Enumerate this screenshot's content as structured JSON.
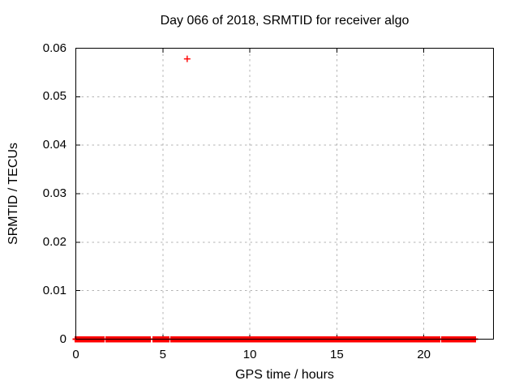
{
  "chart_data": {
    "type": "scatter",
    "title": "Day 066 of 2018, SRMTID for receiver algo",
    "xlabel": "GPS time / hours",
    "ylabel": "SRMTID / TECUs",
    "xlim": [
      0,
      24
    ],
    "ylim": [
      0,
      0.06
    ],
    "xticks": [
      0,
      5,
      10,
      15,
      20
    ],
    "xtick_labels": [
      "0",
      "5",
      "10",
      "15",
      "20"
    ],
    "yticks": [
      0,
      0.01,
      0.02,
      0.03,
      0.04,
      0.05,
      0.06
    ],
    "ytick_labels": [
      "0",
      "0.01",
      "0.02",
      "0.03",
      "0.04",
      "0.05",
      "0.06"
    ],
    "grid": true,
    "legend": "none",
    "marker_style": "plus",
    "colors": {
      "series": "#ff0000",
      "grid": "#b3b3b3",
      "axis": "#000000",
      "text": "#000000",
      "background": "#ffffff"
    },
    "outlier_point": {
      "x": 6.4,
      "y": 0.0578
    },
    "baseline_band": {
      "y": 0,
      "segments_hours": [
        [
          0.0,
          1.3
        ],
        [
          1.4,
          1.58
        ],
        [
          1.77,
          4.24
        ],
        [
          4.47,
          5.31
        ],
        [
          5.5,
          11.56
        ],
        [
          11.7,
          12.82
        ],
        [
          12.96,
          14.03
        ],
        [
          14.17,
          14.91
        ],
        [
          15.05,
          15.84
        ],
        [
          15.94,
          16.08
        ],
        [
          16.17,
          16.73
        ],
        [
          16.82,
          16.96
        ],
        [
          17.06,
          20.18
        ],
        [
          20.27,
          20.88
        ],
        [
          21.06,
          21.39
        ],
        [
          21.53,
          22.93
        ]
      ]
    }
  }
}
